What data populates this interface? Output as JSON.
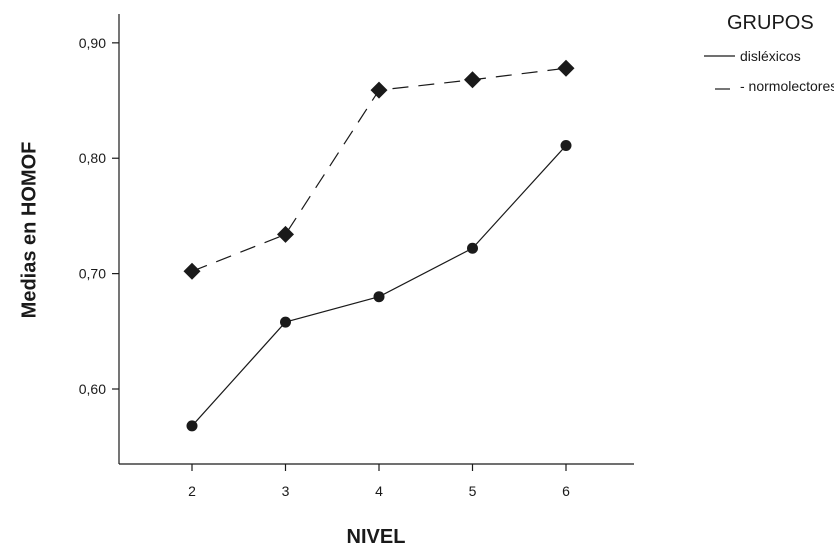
{
  "chart_data": {
    "type": "line",
    "xlabel": "NIVEL",
    "ylabel": "Medias en HOMOF",
    "legend_title": "GRUPOS",
    "legend_position": "top-right",
    "grid": false,
    "x": [
      "2",
      "3",
      "4",
      "5",
      "6"
    ],
    "ylim": [
      0.535,
      0.925
    ],
    "yticks": [
      "0,60",
      "0,70",
      "0,80",
      "0,90"
    ],
    "yticks_values": [
      0.6,
      0.7,
      0.8,
      0.9
    ],
    "series": [
      {
        "name": "disléxicos",
        "legend_label": "disléxicos",
        "marker": "circle",
        "line": "solid",
        "values": [
          0.568,
          0.658,
          0.68,
          0.722,
          0.811
        ]
      },
      {
        "name": "normolectores",
        "legend_label": "- normolectores",
        "marker": "diamond",
        "line": "dashed",
        "values": [
          0.702,
          0.734,
          0.859,
          0.868,
          0.878
        ]
      }
    ],
    "colors": {
      "ink": "#1a1a1a",
      "background": "#ffffff"
    }
  }
}
